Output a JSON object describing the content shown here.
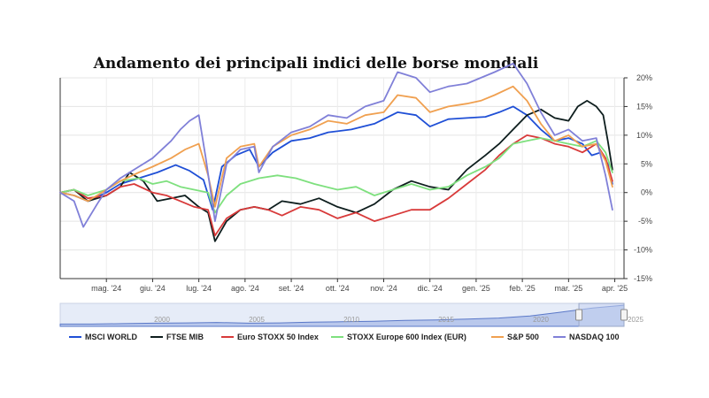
{
  "chart_data": {
    "type": "line",
    "title": "Andamento dei principali indici delle borse mondiali",
    "y_axis_position": "right",
    "ylim": [
      -15,
      20
    ],
    "y_ticks": [
      -15,
      -10,
      -5,
      0,
      5,
      10,
      15,
      20
    ],
    "y_tick_labels": [
      "-15%",
      "-10%",
      "-5%",
      "0%",
      "5%",
      "10%",
      "15%",
      "20%"
    ],
    "x_range": [
      0,
      12.2
    ],
    "x_ticks": [
      1,
      2,
      3,
      4,
      5,
      6,
      7,
      8,
      9,
      10,
      11,
      12
    ],
    "x_tick_labels": [
      "mag. '24",
      "giu. '24",
      "lug. '24",
      "ago. '24",
      "set. '24",
      "ott. '24",
      "nov. '24",
      "dic. '24",
      "gen. '25",
      "feb. '25",
      "mar. '25",
      "apr. '25"
    ],
    "grid": true,
    "legend_position": "bottom",
    "series": [
      {
        "name": "MSCI WORLD",
        "color": "#1f4fd6",
        "points": [
          [
            0,
            0
          ],
          [
            0.3,
            -0.5
          ],
          [
            0.6,
            -1.5
          ],
          [
            1.0,
            0
          ],
          [
            1.3,
            1.5
          ],
          [
            1.7,
            2.5
          ],
          [
            2.1,
            3.5
          ],
          [
            2.5,
            4.8
          ],
          [
            2.8,
            3.8
          ],
          [
            3.1,
            2.2
          ],
          [
            3.3,
            -3.0
          ],
          [
            3.5,
            4.5
          ],
          [
            3.8,
            6.5
          ],
          [
            4.1,
            7.5
          ],
          [
            4.3,
            4.5
          ],
          [
            4.6,
            7.0
          ],
          [
            5.0,
            9.0
          ],
          [
            5.4,
            9.5
          ],
          [
            5.8,
            10.5
          ],
          [
            6.3,
            11.0
          ],
          [
            6.8,
            12.0
          ],
          [
            7.3,
            14.0
          ],
          [
            7.7,
            13.5
          ],
          [
            8.0,
            11.5
          ],
          [
            8.4,
            12.8
          ],
          [
            8.8,
            13.0
          ],
          [
            9.2,
            13.2
          ],
          [
            9.5,
            14.0
          ],
          [
            9.8,
            15.0
          ],
          [
            10.1,
            13.5
          ],
          [
            10.4,
            11.0
          ],
          [
            10.7,
            9.0
          ],
          [
            11.0,
            9.5
          ],
          [
            11.3,
            8.5
          ],
          [
            11.5,
            6.5
          ],
          [
            11.7,
            7.0
          ],
          [
            11.85,
            5.0
          ],
          [
            11.95,
            1.5
          ]
        ]
      },
      {
        "name": "FTSE MIB",
        "color": "#0e1e1e",
        "points": [
          [
            0,
            0
          ],
          [
            0.3,
            0.5
          ],
          [
            0.6,
            -1.5
          ],
          [
            1.0,
            -0.5
          ],
          [
            1.3,
            1.0
          ],
          [
            1.5,
            3.5
          ],
          [
            1.8,
            2.0
          ],
          [
            2.1,
            -1.5
          ],
          [
            2.4,
            -1.0
          ],
          [
            2.7,
            -0.5
          ],
          [
            3.0,
            -2.5
          ],
          [
            3.2,
            -3.5
          ],
          [
            3.35,
            -8.5
          ],
          [
            3.6,
            -5.0
          ],
          [
            3.9,
            -3.0
          ],
          [
            4.2,
            -2.5
          ],
          [
            4.5,
            -3.0
          ],
          [
            4.8,
            -1.5
          ],
          [
            5.2,
            -2.0
          ],
          [
            5.6,
            -1.0
          ],
          [
            6.0,
            -2.5
          ],
          [
            6.4,
            -3.5
          ],
          [
            6.8,
            -2.0
          ],
          [
            7.2,
            0.5
          ],
          [
            7.6,
            2.0
          ],
          [
            8.0,
            1.0
          ],
          [
            8.4,
            0.5
          ],
          [
            8.8,
            4.0
          ],
          [
            9.2,
            6.5
          ],
          [
            9.5,
            8.5
          ],
          [
            9.8,
            11.0
          ],
          [
            10.1,
            13.5
          ],
          [
            10.4,
            14.5
          ],
          [
            10.7,
            13.0
          ],
          [
            11.0,
            12.5
          ],
          [
            11.2,
            15.0
          ],
          [
            11.4,
            16.0
          ],
          [
            11.6,
            15.0
          ],
          [
            11.75,
            13.5
          ],
          [
            11.85,
            9.0
          ],
          [
            11.95,
            4.0
          ]
        ]
      },
      {
        "name": "Euro STOXX 50 Index",
        "color": "#d83a3a",
        "points": [
          [
            0,
            0
          ],
          [
            0.3,
            0.5
          ],
          [
            0.6,
            -1.0
          ],
          [
            1.0,
            -0.5
          ],
          [
            1.3,
            1.0
          ],
          [
            1.6,
            1.5
          ],
          [
            2.0,
            0.0
          ],
          [
            2.3,
            -0.5
          ],
          [
            2.6,
            -1.5
          ],
          [
            2.9,
            -2.5
          ],
          [
            3.2,
            -3.0
          ],
          [
            3.35,
            -7.5
          ],
          [
            3.6,
            -4.5
          ],
          [
            3.9,
            -3.0
          ],
          [
            4.2,
            -2.5
          ],
          [
            4.5,
            -3.0
          ],
          [
            4.8,
            -4.0
          ],
          [
            5.2,
            -2.5
          ],
          [
            5.6,
            -3.0
          ],
          [
            6.0,
            -4.5
          ],
          [
            6.4,
            -3.5
          ],
          [
            6.8,
            -5.0
          ],
          [
            7.2,
            -4.0
          ],
          [
            7.6,
            -3.0
          ],
          [
            8.0,
            -3.0
          ],
          [
            8.4,
            -1.0
          ],
          [
            8.8,
            1.5
          ],
          [
            9.2,
            4.0
          ],
          [
            9.5,
            6.5
          ],
          [
            9.8,
            8.5
          ],
          [
            10.1,
            10.0
          ],
          [
            10.4,
            9.5
          ],
          [
            10.7,
            8.5
          ],
          [
            11.0,
            8.0
          ],
          [
            11.3,
            7.0
          ],
          [
            11.6,
            8.5
          ],
          [
            11.8,
            6.0
          ],
          [
            11.95,
            2.0
          ]
        ]
      },
      {
        "name": "STOXX Europe 600 Index (EUR)",
        "color": "#7ee07e",
        "points": [
          [
            0,
            0
          ],
          [
            0.3,
            0.5
          ],
          [
            0.6,
            -0.5
          ],
          [
            1.0,
            0.5
          ],
          [
            1.3,
            2.0
          ],
          [
            1.7,
            2.5
          ],
          [
            2.0,
            1.5
          ],
          [
            2.3,
            2.0
          ],
          [
            2.6,
            1.0
          ],
          [
            2.9,
            0.5
          ],
          [
            3.2,
            0.0
          ],
          [
            3.35,
            -3.5
          ],
          [
            3.6,
            -0.5
          ],
          [
            3.9,
            1.5
          ],
          [
            4.3,
            2.5
          ],
          [
            4.7,
            3.0
          ],
          [
            5.1,
            2.5
          ],
          [
            5.5,
            1.5
          ],
          [
            6.0,
            0.5
          ],
          [
            6.4,
            1.0
          ],
          [
            6.8,
            -0.5
          ],
          [
            7.2,
            0.5
          ],
          [
            7.6,
            1.5
          ],
          [
            8.0,
            0.5
          ],
          [
            8.4,
            1.0
          ],
          [
            8.8,
            3.0
          ],
          [
            9.2,
            4.5
          ],
          [
            9.5,
            6.0
          ],
          [
            9.8,
            8.5
          ],
          [
            10.1,
            9.0
          ],
          [
            10.4,
            9.5
          ],
          [
            10.7,
            9.0
          ],
          [
            11.0,
            8.5
          ],
          [
            11.3,
            8.0
          ],
          [
            11.6,
            9.0
          ],
          [
            11.8,
            7.0
          ],
          [
            11.95,
            3.5
          ]
        ]
      },
      {
        "name": "S&P 500",
        "color": "#f0a050",
        "points": [
          [
            0,
            0
          ],
          [
            0.3,
            -0.5
          ],
          [
            0.6,
            -1.5
          ],
          [
            1.0,
            0.5
          ],
          [
            1.3,
            2.0
          ],
          [
            1.7,
            3.5
          ],
          [
            2.0,
            4.5
          ],
          [
            2.4,
            6.0
          ],
          [
            2.7,
            7.5
          ],
          [
            3.0,
            8.5
          ],
          [
            3.2,
            3.0
          ],
          [
            3.35,
            -2.5
          ],
          [
            3.6,
            6.0
          ],
          [
            3.9,
            8.0
          ],
          [
            4.2,
            8.5
          ],
          [
            4.3,
            4.5
          ],
          [
            4.6,
            8.0
          ],
          [
            5.0,
            10.0
          ],
          [
            5.4,
            11.0
          ],
          [
            5.8,
            12.5
          ],
          [
            6.2,
            12.0
          ],
          [
            6.6,
            13.5
          ],
          [
            7.0,
            14.0
          ],
          [
            7.3,
            17.0
          ],
          [
            7.7,
            16.5
          ],
          [
            8.0,
            14.0
          ],
          [
            8.4,
            15.0
          ],
          [
            8.8,
            15.5
          ],
          [
            9.1,
            16.0
          ],
          [
            9.4,
            17.0
          ],
          [
            9.8,
            18.5
          ],
          [
            10.1,
            16.0
          ],
          [
            10.4,
            12.0
          ],
          [
            10.7,
            9.0
          ],
          [
            11.0,
            10.0
          ],
          [
            11.3,
            8.0
          ],
          [
            11.6,
            8.5
          ],
          [
            11.8,
            5.5
          ],
          [
            11.95,
            1.0
          ]
        ]
      },
      {
        "name": "NASDAQ 100",
        "color": "#8080d8",
        "points": [
          [
            0,
            0
          ],
          [
            0.3,
            -1.5
          ],
          [
            0.5,
            -6.0
          ],
          [
            0.8,
            -2.0
          ],
          [
            1.0,
            0.5
          ],
          [
            1.3,
            2.5
          ],
          [
            1.7,
            4.5
          ],
          [
            2.0,
            6.0
          ],
          [
            2.4,
            9.0
          ],
          [
            2.6,
            11.0
          ],
          [
            2.8,
            12.5
          ],
          [
            3.0,
            13.5
          ],
          [
            3.15,
            6.0
          ],
          [
            3.35,
            -5.0
          ],
          [
            3.6,
            5.0
          ],
          [
            3.9,
            7.5
          ],
          [
            4.2,
            8.0
          ],
          [
            4.3,
            3.5
          ],
          [
            4.6,
            8.0
          ],
          [
            5.0,
            10.5
          ],
          [
            5.4,
            11.5
          ],
          [
            5.8,
            13.5
          ],
          [
            6.2,
            13.0
          ],
          [
            6.6,
            15.0
          ],
          [
            7.0,
            16.0
          ],
          [
            7.3,
            21.0
          ],
          [
            7.7,
            20.0
          ],
          [
            8.0,
            17.5
          ],
          [
            8.4,
            18.5
          ],
          [
            8.8,
            19.0
          ],
          [
            9.1,
            20.0
          ],
          [
            9.4,
            21.0
          ],
          [
            9.8,
            22.5
          ],
          [
            10.1,
            19.0
          ],
          [
            10.4,
            14.0
          ],
          [
            10.7,
            10.0
          ],
          [
            11.0,
            11.0
          ],
          [
            11.3,
            9.0
          ],
          [
            11.6,
            9.5
          ],
          [
            11.8,
            3.0
          ],
          [
            11.95,
            -3.0
          ]
        ]
      }
    ]
  },
  "navigator": {
    "year_labels": [
      "2000",
      "2005",
      "2010",
      "2015",
      "2020",
      "2025"
    ],
    "area_values": [
      0.1,
      0.1,
      0.12,
      0.14,
      0.15,
      0.17,
      0.14,
      0.15,
      0.18,
      0.2,
      0.22,
      0.26,
      0.28,
      0.32,
      0.36,
      0.45,
      0.62,
      0.8,
      0.92
    ],
    "selected_range": [
      0.92,
      1.0
    ]
  }
}
